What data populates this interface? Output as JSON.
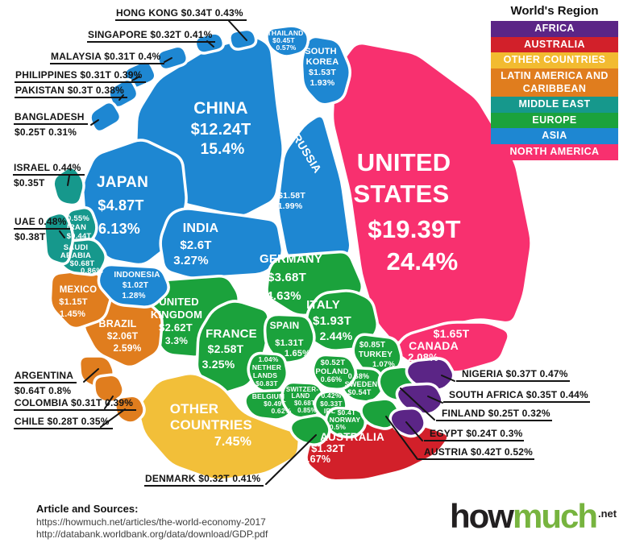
{
  "legend": {
    "title": "World's Region",
    "items": [
      {
        "label": "AFRICA",
        "color": "#5b2586"
      },
      {
        "label": "AUSTRALIA",
        "color": "#d2202a"
      },
      {
        "label": "OTHER COUNTRIES",
        "color": "#f2bb30"
      },
      {
        "label": "LATIN AMERICA AND CARIBBEAN",
        "color": "#e07d1e"
      },
      {
        "label": "MIDDLE EAST",
        "color": "#16988c"
      },
      {
        "label": "EUROPE",
        "color": "#1ba23c"
      },
      {
        "label": "ASIA",
        "color": "#1e87d2"
      },
      {
        "label": "NORTH AMERICA",
        "color": "#f8306f"
      }
    ]
  },
  "footer": {
    "sources_title": "Article and Sources:",
    "source1": "https://howmuch.net/articles/the-world-economy-2017",
    "source2": "http://databank.worldbank.org/data/download/GDP.pdf",
    "logo_part1": "how",
    "logo_part2": "much",
    "logo_suffix": ".net"
  },
  "chart_data": {
    "type": "voronoi-treemap-pie",
    "legend_position": "top-right",
    "region_colors": {
      "Africa": "#5b2586",
      "Australia": "#d2202a",
      "Other Countries": "#f2bf39",
      "Latin America and Caribbean": "#e07d1e",
      "Middle East": "#16988c",
      "Europe": "#1ba23c",
      "Asia": "#1e87d2",
      "North America": "#f8306f"
    },
    "slices": [
      {
        "id": "united_states",
        "country": "United States",
        "gdp": "$19.39T",
        "share": "24.4%",
        "region": "North America"
      },
      {
        "id": "china",
        "country": "China",
        "gdp": "$12.24T",
        "share": "15.4%",
        "region": "Asia"
      },
      {
        "id": "japan",
        "country": "Japan",
        "gdp": "$4.87T",
        "share": "6.13%",
        "region": "Asia"
      },
      {
        "id": "germany",
        "country": "Germany",
        "gdp": "$3.68T",
        "share": "4.63%",
        "region": "Europe"
      },
      {
        "id": "united_kingdom",
        "country": "United Kingdom",
        "gdp": "$2.62T",
        "share": "3.3%",
        "region": "Europe"
      },
      {
        "id": "india",
        "country": "India",
        "gdp": "$2.6T",
        "share": "3.27%",
        "region": "Asia"
      },
      {
        "id": "france",
        "country": "France",
        "gdp": "$2.58T",
        "share": "3.25%",
        "region": "Europe"
      },
      {
        "id": "brazil",
        "country": "Brazil",
        "gdp": "$2.06T",
        "share": "2.59%",
        "region": "Latin America and Caribbean"
      },
      {
        "id": "italy",
        "country": "Italy",
        "gdp": "$1.93T",
        "share": "2.44%",
        "region": "Europe"
      },
      {
        "id": "canada",
        "country": "Canada",
        "gdp": "$1.65T",
        "share": "2.08%",
        "region": "North America"
      },
      {
        "id": "russia",
        "country": "Russia",
        "gdp": "$1.58T",
        "share": "1.99%",
        "region": "Asia"
      },
      {
        "id": "south_korea",
        "country": "South Korea",
        "gdp": "$1.53T",
        "share": "1.93%",
        "region": "Asia"
      },
      {
        "id": "australia",
        "country": "Australia",
        "gdp": "$1.32T",
        "share": "1.67%",
        "region": "Australia"
      },
      {
        "id": "spain",
        "country": "Spain",
        "gdp": "$1.31T",
        "share": "1.65%",
        "region": "Europe"
      },
      {
        "id": "mexico",
        "country": "Mexico",
        "gdp": "$1.15T",
        "share": "1.45%",
        "region": "Latin America and Caribbean"
      },
      {
        "id": "indonesia",
        "country": "Indonesia",
        "gdp": "$1.02T",
        "share": "1.28%",
        "region": "Asia"
      },
      {
        "id": "turkey",
        "country": "Turkey",
        "gdp": "$0.85T",
        "share": "1.07%",
        "region": "Europe"
      },
      {
        "id": "netherlands",
        "country": "Netherlands",
        "gdp": "$0.83T",
        "share": "1.04%",
        "region": "Europe"
      },
      {
        "id": "saudi_arabia",
        "country": "Saudi Arabia",
        "gdp": "$0.68T",
        "share": "0.86%",
        "region": "Middle East"
      },
      {
        "id": "switzerland",
        "country": "Switzerland",
        "gdp": "$0.68T",
        "share": "0.85%",
        "region": "Europe"
      },
      {
        "id": "argentina",
        "country": "Argentina",
        "gdp": "$0.64T",
        "share": "0.8%",
        "region": "Latin America and Caribbean"
      },
      {
        "id": "sweden",
        "country": "Sweden",
        "gdp": "$0.54T",
        "share": "0.68%",
        "region": "Europe"
      },
      {
        "id": "poland",
        "country": "Poland",
        "gdp": "$0.52T",
        "share": "0.66%",
        "region": "Europe"
      },
      {
        "id": "belgium",
        "country": "Belgium",
        "gdp": "$0.49T",
        "share": "0.62%",
        "region": "Europe"
      },
      {
        "id": "thailand",
        "country": "Thailand",
        "gdp": "$0.45T",
        "share": "0.57%",
        "region": "Asia"
      },
      {
        "id": "iran",
        "country": "Iran",
        "gdp": "$0.44T",
        "share": "0.55%",
        "region": "Middle East"
      },
      {
        "id": "austria",
        "country": "Austria",
        "gdp": "$0.42T",
        "share": "0.52%",
        "region": "Europe"
      },
      {
        "id": "norway",
        "country": "Norway",
        "gdp": "$0.4T",
        "share": "0.5%",
        "region": "Europe"
      },
      {
        "id": "uae",
        "country": "UAE",
        "gdp": "$0.38T",
        "share": "0.48%",
        "region": "Middle East"
      },
      {
        "id": "nigeria",
        "country": "Nigeria",
        "gdp": "$0.37T",
        "share": "0.47%",
        "region": "Africa"
      },
      {
        "id": "israel",
        "country": "Israel",
        "gdp": "$0.35T",
        "share": "0.44%",
        "region": "Middle East"
      },
      {
        "id": "south_africa",
        "country": "South Africa",
        "gdp": "$0.35T",
        "share": "0.44%",
        "region": "Africa"
      },
      {
        "id": "hong_kong",
        "country": "Hong Kong",
        "gdp": "$0.34T",
        "share": "0.43%",
        "region": "Asia"
      },
      {
        "id": "ireland",
        "country": "Ireland",
        "gdp": "$0.33T",
        "share": "0.42%",
        "region": "Europe"
      },
      {
        "id": "singapore",
        "country": "Singapore",
        "gdp": "$0.32T",
        "share": "0.41%",
        "region": "Asia"
      },
      {
        "id": "denmark",
        "country": "Denmark",
        "gdp": "$0.32T",
        "share": "0.41%",
        "region": "Europe"
      },
      {
        "id": "malaysia",
        "country": "Malaysia",
        "gdp": "$0.31T",
        "share": "0.4%",
        "region": "Asia"
      },
      {
        "id": "philippines",
        "country": "Philippines",
        "gdp": "$0.31T",
        "share": "0.39%",
        "region": "Asia"
      },
      {
        "id": "colombia",
        "country": "Colombia",
        "gdp": "$0.31T",
        "share": "0.39%",
        "region": "Latin America and Caribbean"
      },
      {
        "id": "pakistan",
        "country": "Pakistan",
        "gdp": "$0.3T",
        "share": "0.38%",
        "region": "Asia"
      },
      {
        "id": "chile",
        "country": "Chile",
        "gdp": "$0.28T",
        "share": "0.35%",
        "region": "Latin America and Caribbean"
      },
      {
        "id": "finland",
        "country": "Finland",
        "gdp": "$0.25T",
        "share": "0.32%",
        "region": "Europe"
      },
      {
        "id": "bangladesh",
        "country": "Bangladesh",
        "gdp": "$0.25T",
        "share": "0.31%",
        "region": "Asia"
      },
      {
        "id": "egypt",
        "country": "Egypt",
        "gdp": "$0.24T",
        "share": "0.3%",
        "region": "Africa"
      },
      {
        "id": "other_countries",
        "country": "Other Countries",
        "gdp": "",
        "share": "7.45%",
        "region": "Other Countries"
      }
    ],
    "cell_labels": {
      "united_states": [
        "UNITED",
        "STATES",
        "$19.39T",
        "24.4%"
      ],
      "china": [
        "CHINA",
        "$12.24T",
        "15.4%"
      ],
      "japan": [
        "JAPAN",
        "$4.87T",
        "6.13%"
      ],
      "india": [
        "INDIA",
        "$2.6T",
        "3.27%"
      ],
      "germany": [
        "GERMANY",
        "$3.68T",
        "4.63%"
      ],
      "united_kingdom": [
        "UNITED",
        "KINGDOM",
        "$2.62T",
        "3.3%"
      ],
      "france": [
        "FRANCE",
        "$2.58T",
        "3.25%"
      ],
      "italy": [
        "ITALY",
        "$1.93T",
        "2.44%"
      ],
      "spain": [
        "SPAIN",
        "$1.31T",
        "1.65%"
      ],
      "canada": [
        "$1.65T",
        "CANADA",
        "2.08%"
      ],
      "russia": [
        "RUSSIA",
        "$1.58T",
        "1.99%"
      ],
      "south_korea": [
        "SOUTH",
        "KOREA",
        "$1.53T",
        "1.93%"
      ],
      "thailand": [
        "THAILAND",
        "$0.45T",
        "0.57%"
      ],
      "indonesia": [
        "INDONESIA",
        "$1.02T",
        "1.28%"
      ],
      "mexico": [
        "MEXICO",
        "$1.15T",
        "1.45%"
      ],
      "brazil": [
        "BRAZIL",
        "$2.06T",
        "2.59%"
      ],
      "other_countries": [
        "OTHER",
        "COUNTRIES",
        "7.45%"
      ],
      "australia": [
        "AUSTRALIA",
        "$1.32T",
        "1.67%"
      ],
      "turkey": [
        "$0.85T",
        "TURKEY",
        "1.07%"
      ],
      "sweden": [
        "0.68%",
        "SWEDEN",
        "$0.54T"
      ],
      "poland": [
        "$0.52T",
        "POLAND",
        "0.66%"
      ],
      "netherlands": [
        "1.04%",
        "NETHER",
        "LANDS",
        "$0.83T"
      ],
      "belgium": [
        "BELGIUM",
        "$0.49T",
        "0.62%"
      ],
      "switzerland": [
        "SWITZER-",
        "LAND",
        "$0.68T",
        "0.85%"
      ],
      "ireland": [
        "0.42%",
        "$0.33T",
        "IRL"
      ],
      "norway": [
        "$0.4T",
        "NORWAY",
        "0.5%"
      ],
      "iran": [
        "0.55%",
        "IRAN",
        "$0.44T"
      ],
      "saudi_arabia": [
        "SAUDI",
        "ARABIA",
        "$0.68T",
        "0.86%"
      ]
    },
    "callouts": {
      "hong_kong": {
        "lines": [
          "HONG KONG  $0.34T  0.43%"
        ]
      },
      "singapore": {
        "lines": [
          "SINGAPORE $0.32T  0.41%"
        ]
      },
      "malaysia": {
        "lines": [
          "MALAYSIA  $0.31T  0.4%"
        ]
      },
      "philippines": {
        "lines": [
          "PHILIPPINES $0.31T  0.39%"
        ]
      },
      "pakistan": {
        "lines": [
          "PAKISTAN  $0.3T  0.38%"
        ]
      },
      "bangladesh": {
        "lines": [
          "BANGLADESH",
          "$0.25T  0.31%"
        ]
      },
      "israel": {
        "lines": [
          "ISRAEL 0.44%",
          "$0.35T"
        ]
      },
      "uae": {
        "lines": [
          "UAE  0.48%",
          "$0.38T"
        ]
      },
      "argentina": {
        "lines": [
          "ARGENTINA",
          "$0.64T 0.8%"
        ]
      },
      "colombia": {
        "lines": [
          "COLOMBIA $0.31T  0.39%"
        ]
      },
      "chile": {
        "lines": [
          "CHILE  $0.28T  0.35%"
        ]
      },
      "denmark": {
        "lines": [
          "DENMARK $0.32T 0.41%"
        ]
      },
      "nigeria": {
        "lines": [
          "NIGERIA $0.37T 0.47%"
        ]
      },
      "south_africa": {
        "lines": [
          "SOUTH AFRICA $0.35T 0.44%"
        ]
      },
      "finland": {
        "lines": [
          "FINLAND $0.25T  0.32%"
        ]
      },
      "egypt": {
        "lines": [
          "EGYPT $0.24T  0.3%"
        ]
      },
      "austria": {
        "lines": [
          "AUSTRIA $0.42T  0.52%"
        ]
      }
    }
  }
}
